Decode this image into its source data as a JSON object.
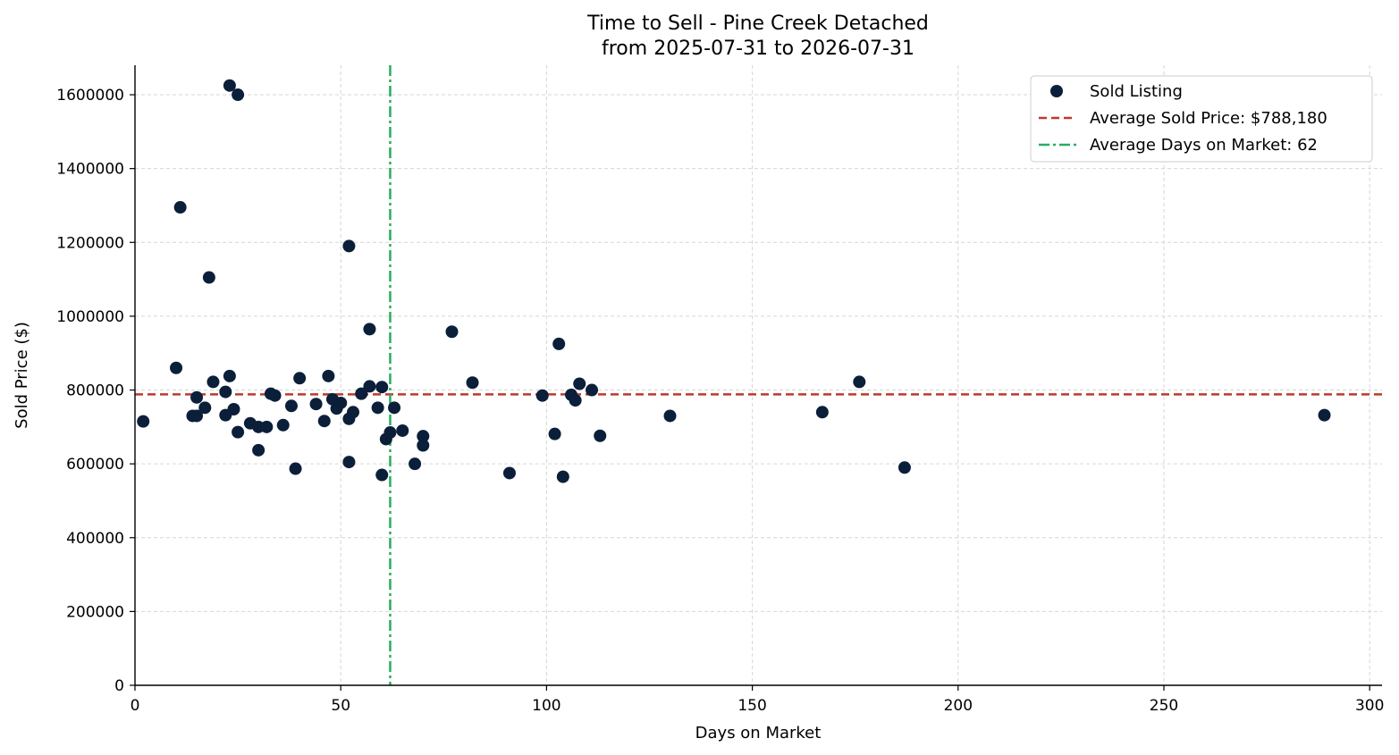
{
  "chart_data": {
    "type": "scatter",
    "title": "Time to Sell - Pine Creek Detached",
    "subtitle": "from 2025-07-31 to 2026-07-31",
    "xlabel": "Days on Market",
    "ylabel": "Sold Price ($)",
    "xlim": [
      0,
      303
    ],
    "ylim": [
      0,
      1680000
    ],
    "xticks": [
      0,
      50,
      100,
      150,
      200,
      250,
      300
    ],
    "yticks": [
      0,
      200000,
      400000,
      600000,
      800000,
      1000000,
      1200000,
      1400000,
      1600000
    ],
    "grid": true,
    "legend_position": "top-right",
    "colors": {
      "points": "#0b1f3a",
      "avg_price": "#c0392b",
      "avg_days": "#27ae60"
    },
    "series": [
      {
        "name": "Sold Listing",
        "points": [
          [
            2,
            715000
          ],
          [
            10,
            860000
          ],
          [
            11,
            1295000
          ],
          [
            14,
            730000
          ],
          [
            15,
            730000
          ],
          [
            15,
            780000
          ],
          [
            17,
            752000
          ],
          [
            18,
            1105000
          ],
          [
            19,
            822000
          ],
          [
            22,
            795000
          ],
          [
            22,
            732000
          ],
          [
            23,
            838000
          ],
          [
            23,
            1625000
          ],
          [
            24,
            748000
          ],
          [
            25,
            686000
          ],
          [
            25,
            1600000
          ],
          [
            28,
            710000
          ],
          [
            30,
            700000
          ],
          [
            30,
            637000
          ],
          [
            32,
            700000
          ],
          [
            33,
            790000
          ],
          [
            34,
            785000
          ],
          [
            36,
            705000
          ],
          [
            38,
            757000
          ],
          [
            39,
            587000
          ],
          [
            40,
            832000
          ],
          [
            44,
            762000
          ],
          [
            46,
            716000
          ],
          [
            47,
            838000
          ],
          [
            48,
            775000
          ],
          [
            49,
            750000
          ],
          [
            50,
            765000
          ],
          [
            52,
            722000
          ],
          [
            52,
            605000
          ],
          [
            52,
            1190000
          ],
          [
            53,
            740000
          ],
          [
            55,
            790000
          ],
          [
            57,
            810000
          ],
          [
            57,
            965000
          ],
          [
            59,
            752000
          ],
          [
            60,
            808000
          ],
          [
            60,
            570000
          ],
          [
            61,
            667000
          ],
          [
            62,
            685000
          ],
          [
            63,
            752000
          ],
          [
            65,
            690000
          ],
          [
            68,
            600000
          ],
          [
            70,
            675000
          ],
          [
            70,
            650000
          ],
          [
            77,
            958000
          ],
          [
            82,
            820000
          ],
          [
            91,
            575000
          ],
          [
            99,
            785000
          ],
          [
            102,
            681000
          ],
          [
            103,
            925000
          ],
          [
            104,
            565000
          ],
          [
            106,
            787000
          ],
          [
            107,
            772000
          ],
          [
            108,
            817000
          ],
          [
            111,
            800000
          ],
          [
            113,
            676000
          ],
          [
            130,
            730000
          ],
          [
            167,
            740000
          ],
          [
            176,
            822000
          ],
          [
            187,
            590000
          ],
          [
            289,
            732000
          ]
        ]
      }
    ],
    "reference_lines": [
      {
        "name": "Average Sold Price: $788,180",
        "orientation": "horizontal",
        "value": 788180,
        "style": "dashed"
      },
      {
        "name": "Average Days on Market: 62",
        "orientation": "vertical",
        "value": 62,
        "style": "dashdot"
      }
    ]
  }
}
